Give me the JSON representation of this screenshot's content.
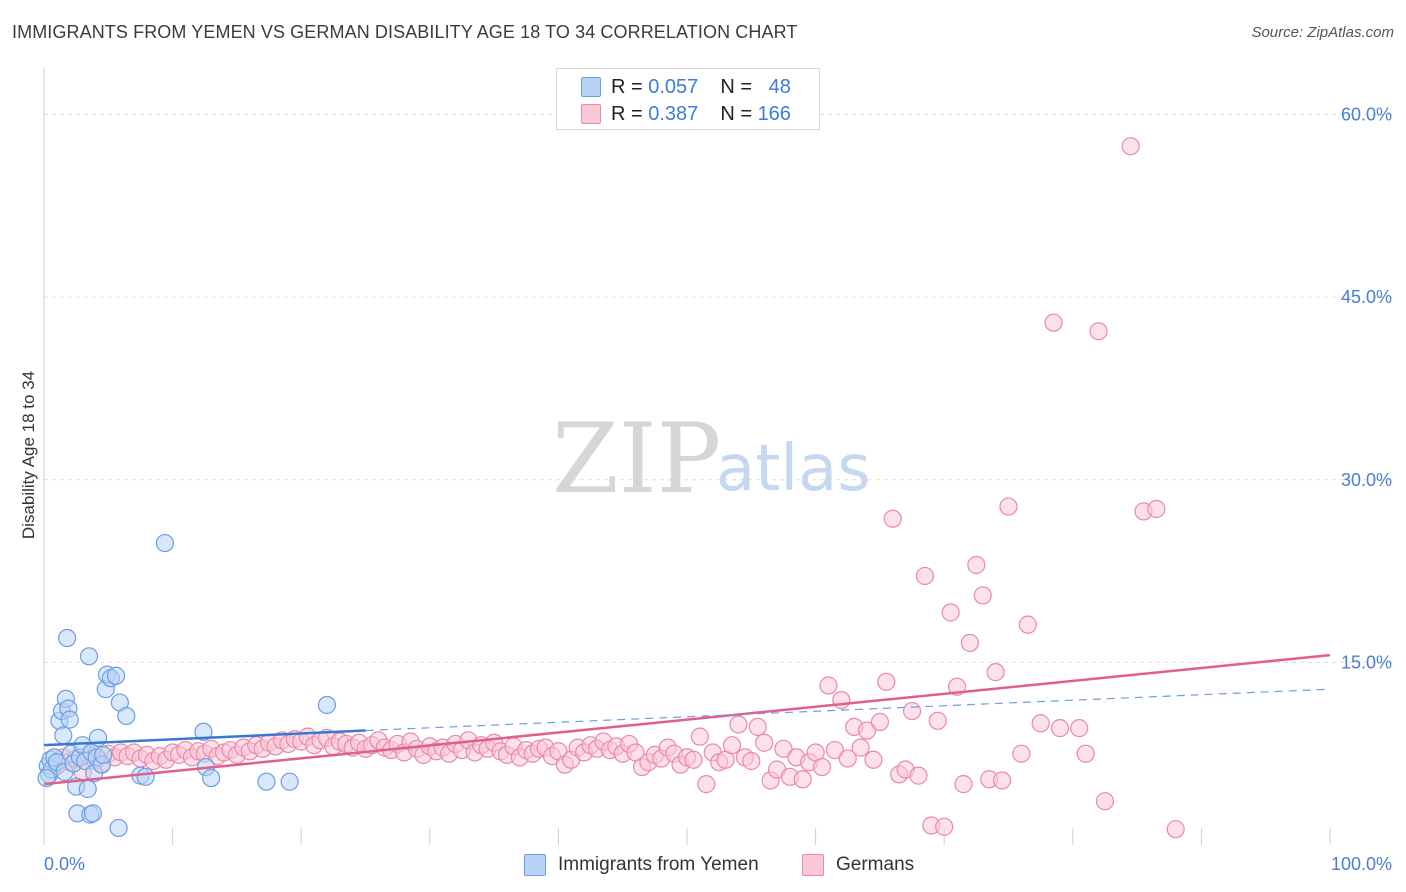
{
  "title": "IMMIGRANTS FROM YEMEN VS GERMAN DISABILITY AGE 18 TO 34 CORRELATION CHART",
  "source": "Source: ZipAtlas.com",
  "watermark": {
    "zip": "ZIP",
    "atlas": "atlas"
  },
  "stats": {
    "blue": {
      "r_label": "R =",
      "r_value": "0.057",
      "n_label": "N =",
      "n_value": "48"
    },
    "pink": {
      "r_label": "R =",
      "r_value": "0.387",
      "n_label": "N =",
      "n_value": "166"
    }
  },
  "legend": {
    "blue_label": "Immigrants from Yemen",
    "pink_label": "Germans"
  },
  "colors": {
    "blue_fill": "#b8d3f5",
    "blue_stroke": "#6c9ee0",
    "blue_line": "#3a78d4",
    "pink_fill": "#f9c8d8",
    "pink_stroke": "#e88aa8",
    "pink_line": "#e0608c",
    "grid": "#dddddd",
    "tick_label": "#4a7fd0"
  },
  "chart_data": {
    "type": "scatter",
    "title": "IMMIGRANTS FROM YEMEN VS GERMAN DISABILITY AGE 18 TO 34 CORRELATION CHART",
    "xlabel": "",
    "ylabel": "Disability Age 18 to 34",
    "xlim": [
      0,
      100
    ],
    "ylim": [
      0,
      63
    ],
    "x_tick_labels": [
      "0.0%",
      "100.0%"
    ],
    "y_ticks": [
      15,
      30,
      45,
      60
    ],
    "y_tick_labels": [
      "15.0%",
      "30.0%",
      "45.0%",
      "60.0%"
    ],
    "series": [
      {
        "name": "Immigrants from Yemen",
        "color": "blue",
        "trend": {
          "solid": [
            [
              0,
              8.2
            ],
            [
              25,
              9.4
            ]
          ],
          "dashed": [
            [
              25,
              9.4
            ],
            [
              100,
              12.8
            ]
          ]
        },
        "points": [
          [
            0.3,
            6.5
          ],
          [
            0.5,
            7.0
          ],
          [
            0.4,
            5.8
          ],
          [
            0.6,
            6.2
          ],
          [
            0.8,
            7.2
          ],
          [
            1.0,
            6.8
          ],
          [
            1.2,
            10.2
          ],
          [
            1.4,
            11.0
          ],
          [
            1.5,
            9.0
          ],
          [
            1.6,
            6.0
          ],
          [
            1.8,
            17.0
          ],
          [
            1.7,
            12.0
          ],
          [
            1.9,
            11.2
          ],
          [
            2.0,
            10.3
          ],
          [
            2.1,
            7.5
          ],
          [
            2.3,
            6.7
          ],
          [
            2.5,
            4.8
          ],
          [
            2.6,
            2.6
          ],
          [
            2.8,
            7.2
          ],
          [
            3.0,
            8.2
          ],
          [
            3.2,
            6.9
          ],
          [
            3.4,
            4.6
          ],
          [
            3.5,
            15.5
          ],
          [
            3.6,
            2.5
          ],
          [
            3.7,
            7.6
          ],
          [
            3.8,
            2.6
          ],
          [
            3.9,
            5.9
          ],
          [
            4.1,
            7.2
          ],
          [
            4.2,
            8.8
          ],
          [
            4.5,
            6.6
          ],
          [
            4.6,
            7.4
          ],
          [
            4.8,
            12.8
          ],
          [
            4.9,
            14.0
          ],
          [
            5.2,
            13.7
          ],
          [
            5.6,
            13.9
          ],
          [
            5.8,
            1.4
          ],
          [
            5.9,
            11.7
          ],
          [
            6.4,
            10.6
          ],
          [
            7.5,
            5.7
          ],
          [
            7.9,
            5.6
          ],
          [
            9.4,
            24.8
          ],
          [
            12.4,
            9.3
          ],
          [
            12.6,
            6.4
          ],
          [
            13.0,
            5.5
          ],
          [
            17.3,
            5.2
          ],
          [
            19.1,
            5.2
          ],
          [
            22.0,
            11.5
          ],
          [
            0.2,
            5.5
          ]
        ]
      },
      {
        "name": "Germans",
        "color": "pink",
        "trend": {
          "solid": [
            [
              0,
              5.0
            ],
            [
              100,
              15.6
            ]
          ]
        },
        "points": [
          [
            1.0,
            6.5
          ],
          [
            1.5,
            7.2
          ],
          [
            2.0,
            6.8
          ],
          [
            2.5,
            7.1
          ],
          [
            3.0,
            6.0
          ],
          [
            3.5,
            7.4
          ],
          [
            4.0,
            6.9
          ],
          [
            4.5,
            6.7
          ],
          [
            5.0,
            7.5
          ],
          [
            5.5,
            7.2
          ],
          [
            6.0,
            7.6
          ],
          [
            6.5,
            7.3
          ],
          [
            7.0,
            7.6
          ],
          [
            7.5,
            7.1
          ],
          [
            8.0,
            7.4
          ],
          [
            8.5,
            6.9
          ],
          [
            9.0,
            7.3
          ],
          [
            9.5,
            7.0
          ],
          [
            10.0,
            7.6
          ],
          [
            10.5,
            7.4
          ],
          [
            11.0,
            7.8
          ],
          [
            11.5,
            7.2
          ],
          [
            12.0,
            7.7
          ],
          [
            12.5,
            7.5
          ],
          [
            13.0,
            7.9
          ],
          [
            13.5,
            7.3
          ],
          [
            14.0,
            7.6
          ],
          [
            14.5,
            7.8
          ],
          [
            15.0,
            7.4
          ],
          [
            15.5,
            8.0
          ],
          [
            16.0,
            7.7
          ],
          [
            16.5,
            8.2
          ],
          [
            17.0,
            7.9
          ],
          [
            17.5,
            8.4
          ],
          [
            18.0,
            8.1
          ],
          [
            18.5,
            8.6
          ],
          [
            19.0,
            8.3
          ],
          [
            19.5,
            8.7
          ],
          [
            20.0,
            8.5
          ],
          [
            20.5,
            8.9
          ],
          [
            21.0,
            8.2
          ],
          [
            21.5,
            8.6
          ],
          [
            22.0,
            8.8
          ],
          [
            22.5,
            8.1
          ],
          [
            23.0,
            8.5
          ],
          [
            23.5,
            8.3
          ],
          [
            24.0,
            8.0
          ],
          [
            24.5,
            8.4
          ],
          [
            25.0,
            7.9
          ],
          [
            25.5,
            8.2
          ],
          [
            26.0,
            8.6
          ],
          [
            26.5,
            8.0
          ],
          [
            27.0,
            7.8
          ],
          [
            27.5,
            8.3
          ],
          [
            28.0,
            7.6
          ],
          [
            28.5,
            8.5
          ],
          [
            29.0,
            7.9
          ],
          [
            29.5,
            7.4
          ],
          [
            30.0,
            8.1
          ],
          [
            30.5,
            7.7
          ],
          [
            31.0,
            8.0
          ],
          [
            31.5,
            7.5
          ],
          [
            32.0,
            8.3
          ],
          [
            32.5,
            7.8
          ],
          [
            33.0,
            8.6
          ],
          [
            33.5,
            7.6
          ],
          [
            34.0,
            8.2
          ],
          [
            34.5,
            7.9
          ],
          [
            35.0,
            8.4
          ],
          [
            35.5,
            7.7
          ],
          [
            36.0,
            7.4
          ],
          [
            36.5,
            8.1
          ],
          [
            37.0,
            7.2
          ],
          [
            37.5,
            7.8
          ],
          [
            38.0,
            7.5
          ],
          [
            38.5,
            7.9
          ],
          [
            39.0,
            8.0
          ],
          [
            39.5,
            7.3
          ],
          [
            40.0,
            7.7
          ],
          [
            40.5,
            6.6
          ],
          [
            41.0,
            7.0
          ],
          [
            41.5,
            8.0
          ],
          [
            42.0,
            7.6
          ],
          [
            42.5,
            8.2
          ],
          [
            43.0,
            7.9
          ],
          [
            43.5,
            8.5
          ],
          [
            44.0,
            7.8
          ],
          [
            44.5,
            8.1
          ],
          [
            45.0,
            7.5
          ],
          [
            45.5,
            8.3
          ],
          [
            46.0,
            7.6
          ],
          [
            46.5,
            6.4
          ],
          [
            47.0,
            6.8
          ],
          [
            47.5,
            7.4
          ],
          [
            48.0,
            7.1
          ],
          [
            48.5,
            8.0
          ],
          [
            49.0,
            7.5
          ],
          [
            49.5,
            6.6
          ],
          [
            50.0,
            7.2
          ],
          [
            50.5,
            7.0
          ],
          [
            51.0,
            8.9
          ],
          [
            51.5,
            5.0
          ],
          [
            52.0,
            7.6
          ],
          [
            52.5,
            6.8
          ],
          [
            53.0,
            7.0
          ],
          [
            53.5,
            8.2
          ],
          [
            54.0,
            9.9
          ],
          [
            54.5,
            7.2
          ],
          [
            55.0,
            6.9
          ],
          [
            55.5,
            9.7
          ],
          [
            56.0,
            8.4
          ],
          [
            56.5,
            5.3
          ],
          [
            57.0,
            6.2
          ],
          [
            57.5,
            7.9
          ],
          [
            58.0,
            5.6
          ],
          [
            58.5,
            7.2
          ],
          [
            59.0,
            5.4
          ],
          [
            59.5,
            6.8
          ],
          [
            60.0,
            7.6
          ],
          [
            60.5,
            6.4
          ],
          [
            61.0,
            13.1
          ],
          [
            61.5,
            7.8
          ],
          [
            62.0,
            11.9
          ],
          [
            62.5,
            7.1
          ],
          [
            63.0,
            9.7
          ],
          [
            63.5,
            8.0
          ],
          [
            64.0,
            9.4
          ],
          [
            64.5,
            7.0
          ],
          [
            65.0,
            10.1
          ],
          [
            65.5,
            13.4
          ],
          [
            66.0,
            26.8
          ],
          [
            66.5,
            5.8
          ],
          [
            67.0,
            6.2
          ],
          [
            67.5,
            11.0
          ],
          [
            68.0,
            5.7
          ],
          [
            68.5,
            22.1
          ],
          [
            69.0,
            1.6
          ],
          [
            69.5,
            10.2
          ],
          [
            70.0,
            1.5
          ],
          [
            70.5,
            19.1
          ],
          [
            71.0,
            13.0
          ],
          [
            71.5,
            5.0
          ],
          [
            72.0,
            16.6
          ],
          [
            72.5,
            23.0
          ],
          [
            73.0,
            20.5
          ],
          [
            73.5,
            5.4
          ],
          [
            74.0,
            14.2
          ],
          [
            74.5,
            5.3
          ],
          [
            75.0,
            27.8
          ],
          [
            76.0,
            7.5
          ],
          [
            76.5,
            18.1
          ],
          [
            77.5,
            10.0
          ],
          [
            78.5,
            42.9
          ],
          [
            79.0,
            9.6
          ],
          [
            80.5,
            9.6
          ],
          [
            81.0,
            7.5
          ],
          [
            82.0,
            42.2
          ],
          [
            82.5,
            3.6
          ],
          [
            84.5,
            57.4
          ],
          [
            85.5,
            27.4
          ],
          [
            86.5,
            27.6
          ],
          [
            88.0,
            1.3
          ]
        ]
      }
    ]
  }
}
